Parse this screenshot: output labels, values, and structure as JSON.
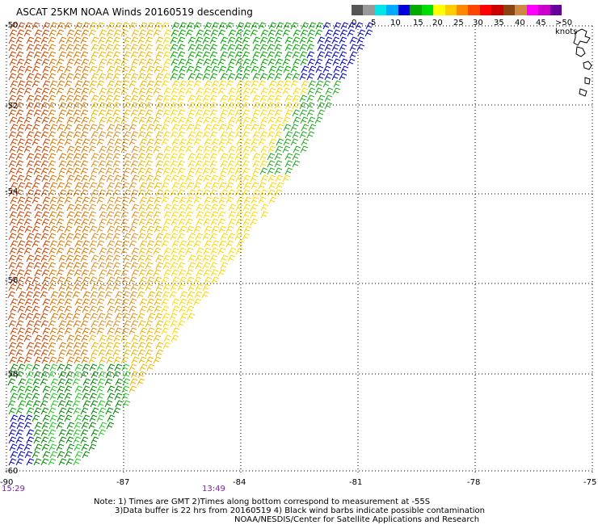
{
  "title": "ASCAT 25KM NOAA Winds 20160519 descending",
  "legend": {
    "colors": [
      "#555555",
      "#999999",
      "#00e5e5",
      "#00aaff",
      "#0000dd",
      "#00aa00",
      "#00dd00",
      "#ffff00",
      "#ffcc00",
      "#ff8800",
      "#ff4400",
      "#ff0000",
      "#cc0000",
      "#884411",
      "#cc8844",
      "#ff00ff",
      "#cc00cc",
      "#660099"
    ],
    "labels": [
      "0",
      "5",
      "10",
      "15",
      "20",
      "25",
      "30",
      "35",
      "40",
      "45",
      ">50 knots"
    ]
  },
  "axes": {
    "lon_labels": [
      "-90",
      "-87",
      "-84",
      "-81",
      "-78",
      "-75"
    ],
    "lat_labels": [
      "-50",
      "-52",
      "-54",
      "-56",
      "-58",
      "-60"
    ]
  },
  "times": [
    "15:29",
    "13:49"
  ],
  "notes": {
    "line1": "Note: 1) Times are GMT 2)Times along bottom correspond to measurement at -55S",
    "line2": "3)Data buffer is 22 hrs from 20160519 4) Black wind barbs indicate possible contamination",
    "line3": "NOAA/NESDIS/Center for Satellite Applications and Research"
  }
}
